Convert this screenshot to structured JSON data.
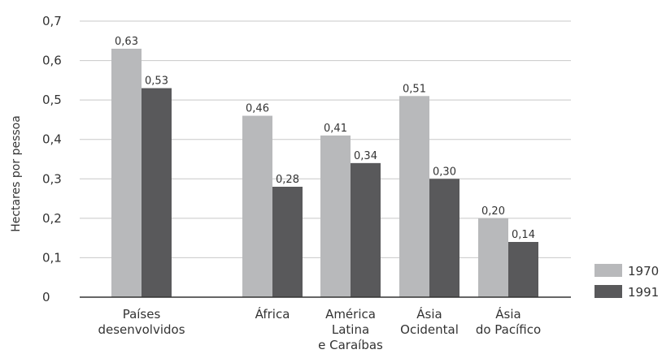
{
  "chart_data": {
    "type": "bar",
    "title": "",
    "xlabel": "",
    "ylabel": "Hectares por pessoa",
    "ylim": [
      0,
      0.7
    ],
    "yticks": [
      {
        "value": 0.0,
        "label": "0"
      },
      {
        "value": 0.1,
        "label": "0,1"
      },
      {
        "value": 0.2,
        "label": "0,2"
      },
      {
        "value": 0.3,
        "label": "0,3"
      },
      {
        "value": 0.4,
        "label": "0,4"
      },
      {
        "value": 0.5,
        "label": "0,5"
      },
      {
        "value": 0.6,
        "label": "0,6"
      },
      {
        "value": 0.7,
        "label": "0,7"
      }
    ],
    "grid": true,
    "legend_position": "bottom-right",
    "categories": [
      [
        "Países",
        "desenvolvidos"
      ],
      [
        "África"
      ],
      [
        "América",
        "Latina",
        "e Caraíbas"
      ],
      [
        "Ásia",
        "Ocidental"
      ],
      [
        "Ásia",
        "do Pacífico"
      ]
    ],
    "series": [
      {
        "name": "1970",
        "color": "#b8b9bb",
        "values": [
          0.63,
          0.46,
          0.41,
          0.51,
          0.2
        ],
        "labels": [
          "0,63",
          "0,46",
          "0,41",
          "0,51",
          "0,20"
        ]
      },
      {
        "name": "1991",
        "color": "#59595b",
        "values": [
          0.53,
          0.28,
          0.34,
          0.3,
          0.14
        ],
        "labels": [
          "0,53",
          "0,28",
          "0,34",
          "0,30",
          "0,14"
        ]
      }
    ]
  }
}
